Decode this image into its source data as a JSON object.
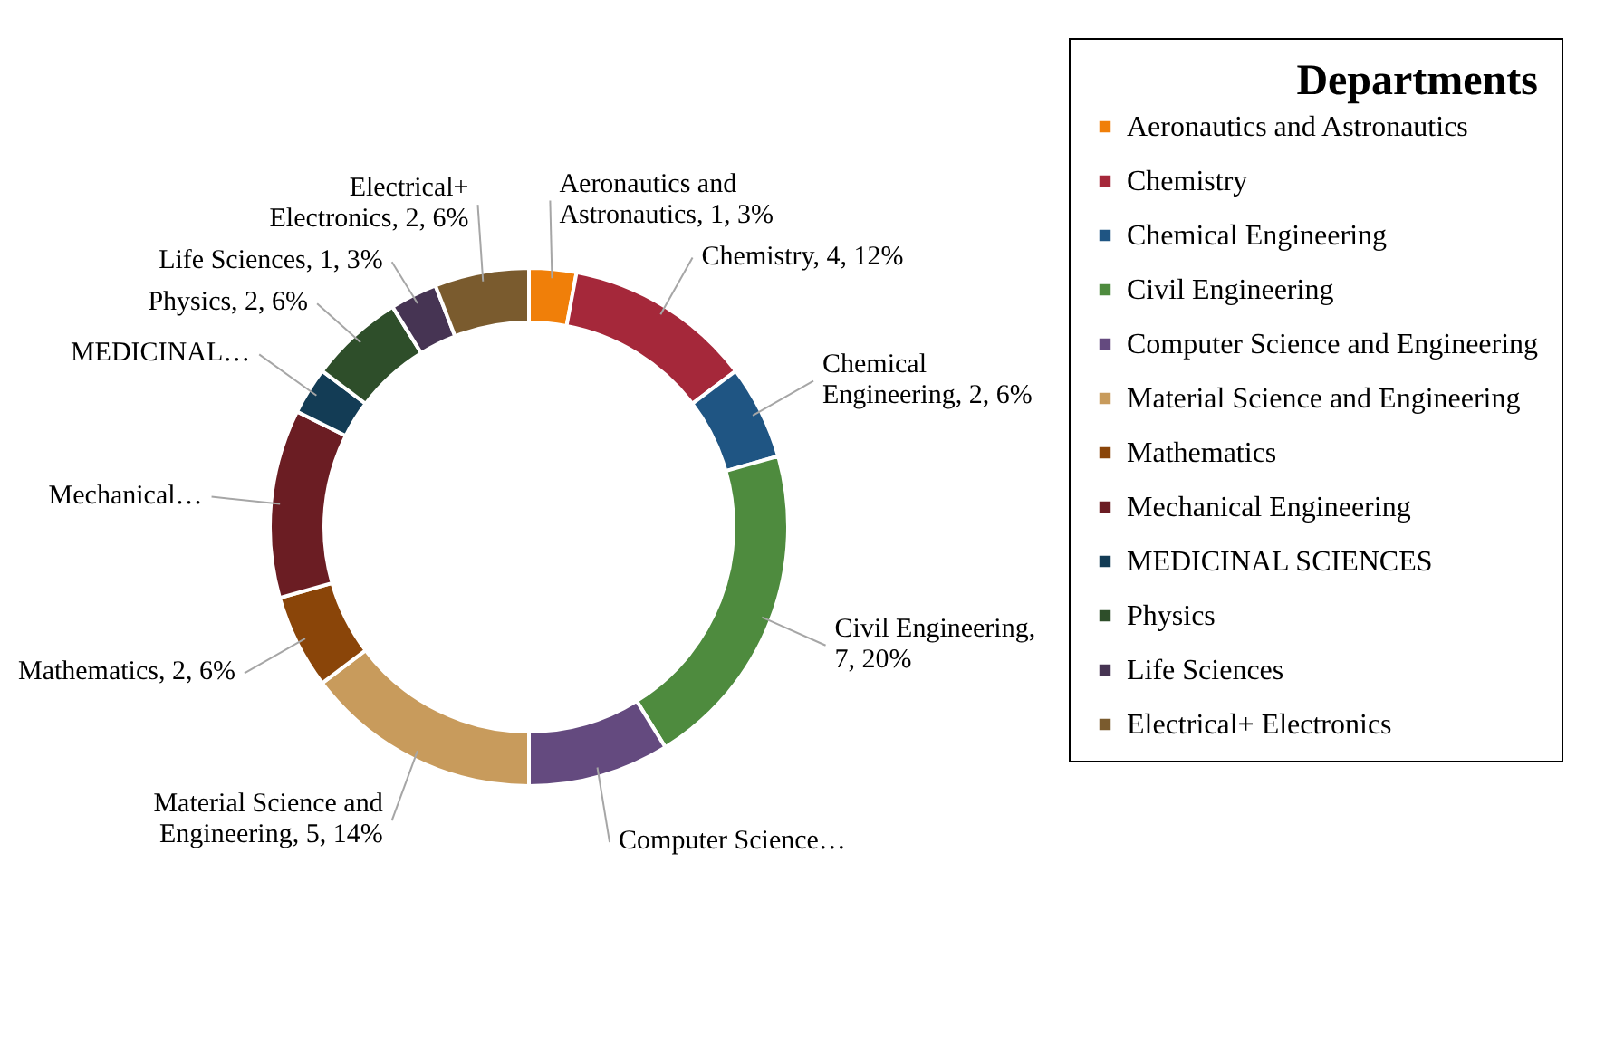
{
  "chart_data": {
    "type": "donut",
    "legend_title": "Departments",
    "legend": "right",
    "categories": [
      "Aeronautics and Astronautics",
      "Chemistry",
      "Chemical Engineering",
      "Civil Engineering",
      "Computer Science and Engineering",
      "Material Science and Engineering",
      "Mathematics",
      "Mechanical Engineering",
      "MEDICINAL SCIENCES",
      "Physics",
      "Life Sciences",
      "Electrical+ Electronics"
    ],
    "values": [
      1,
      4,
      2,
      7,
      3,
      5,
      2,
      4,
      1,
      2,
      1,
      2
    ],
    "colors": [
      "#f07f09",
      "#a5283a",
      "#1f5583",
      "#4e8b3e",
      "#644a7f",
      "#c89b5c",
      "#8a4509",
      "#6b1d23",
      "#133c55",
      "#2e4e2a",
      "#463453",
      "#7a5b2e"
    ],
    "value_labels": [
      "Aeronautics and Astronautics, 1, 3%",
      "Chemistry, 4, 12%",
      "Chemical Engineering, 2, 6%",
      "Civil Engineering, 7, 20%",
      "Computer Science…",
      "Material Science and Engineering, 5, 14%",
      "Mathematics, 2, 6%",
      "Mechanical…",
      "MEDICINAL…",
      "Physics, 2, 6%",
      "Life Sciences, 1, 3%",
      "Electrical+ Electronics, 2, 6%"
    ]
  }
}
